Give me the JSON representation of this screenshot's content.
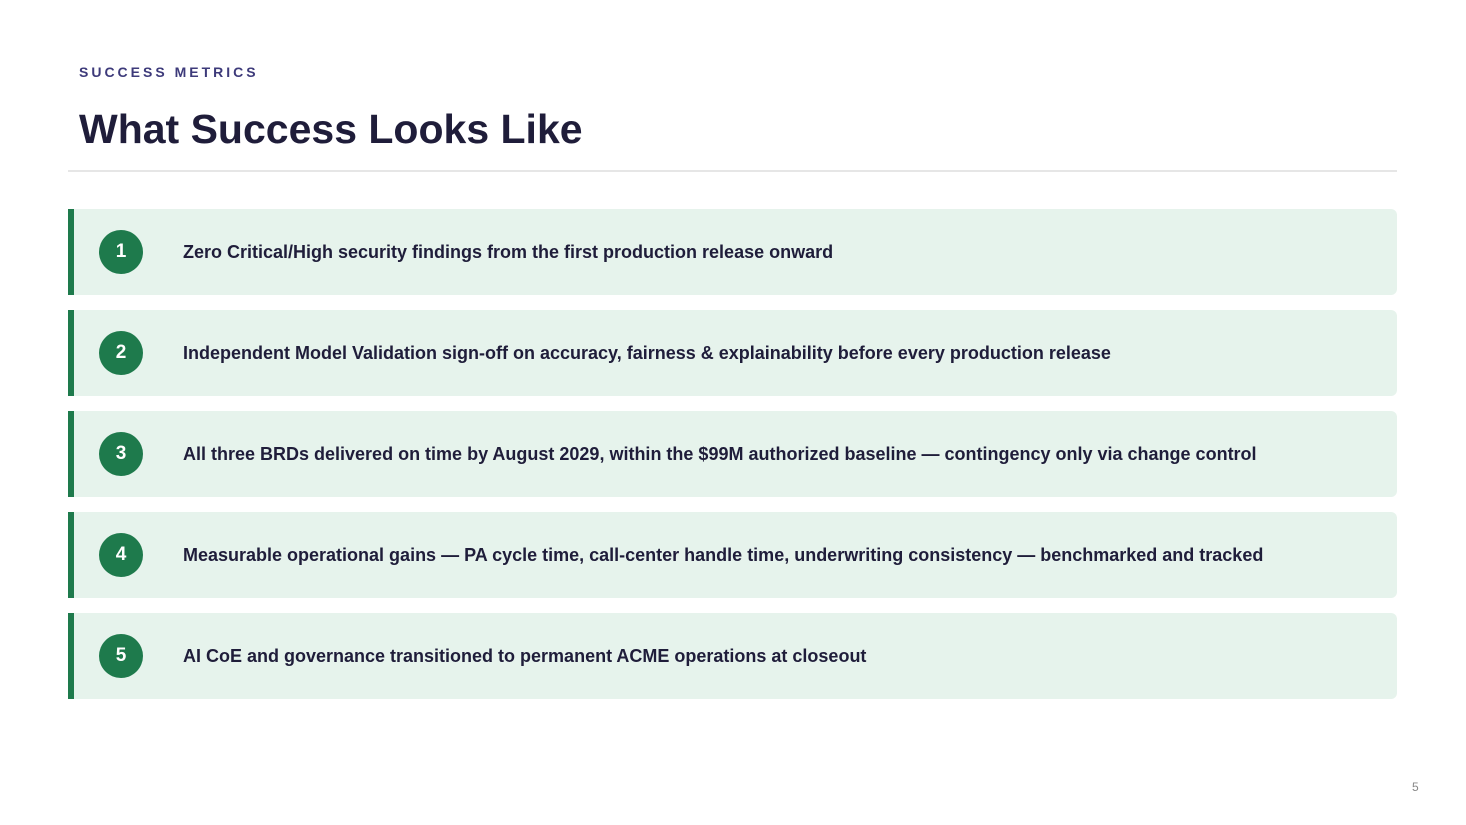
{
  "header": {
    "eyebrow": "SUCCESS METRICS",
    "title": "What Success Looks Like"
  },
  "items": [
    {
      "number": "1",
      "text": "Zero Critical/High security findings from the first production release onward"
    },
    {
      "number": "2",
      "text": "Independent Model Validation sign-off on accuracy, fairness & explainability before every production release"
    },
    {
      "number": "3",
      "text": "All three BRDs delivered on time by August 2029, within the $99M authorized baseline — contingency only via change control"
    },
    {
      "number": "4",
      "text": "Measurable operational gains — PA cycle time, call-center handle time, underwriting consistency — benchmarked and tracked"
    },
    {
      "number": "5",
      "text": "AI CoE and governance transitioned to permanent ACME operations at closeout"
    }
  ],
  "footer": {
    "page_number": "5"
  }
}
